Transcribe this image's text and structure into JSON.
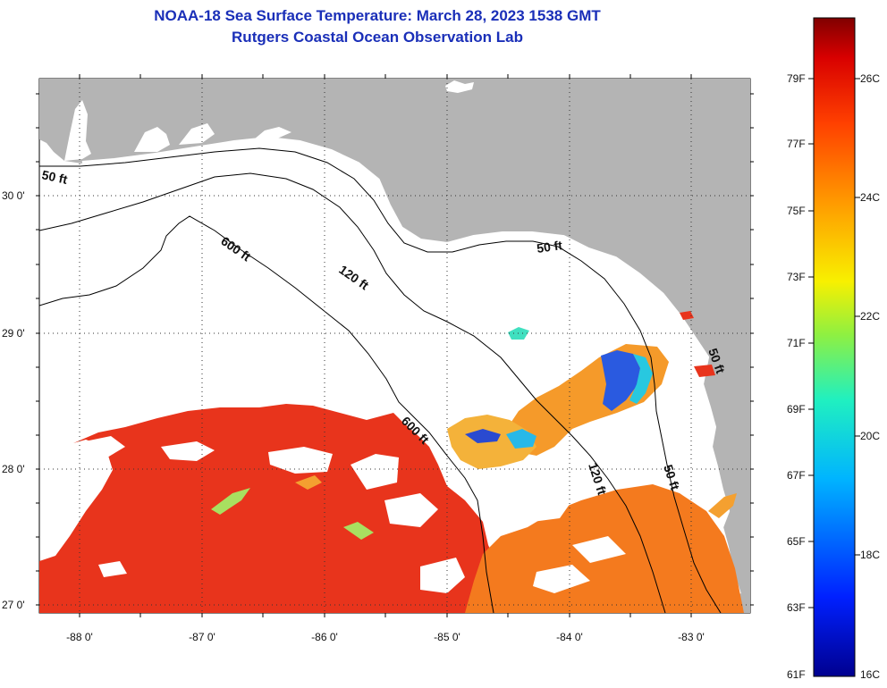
{
  "title": {
    "line1": "NOAA-18 Sea Surface Temperature:  March 28, 2023 1538 GMT",
    "line2": "Rutgers Coastal Ocean Observation Lab"
  },
  "map": {
    "lat_labels": [
      "30 0'",
      "29 0'",
      "28 0'",
      "27 0'"
    ],
    "lon_labels": [
      "-88 0'",
      "-87 0'",
      "-86 0'",
      "-85 0'",
      "-84 0'",
      "-83 0'"
    ],
    "contour_labels": {
      "c50_west": "50 ft",
      "c600_north": "600 ft",
      "c120_north": "120 ft",
      "c50_east": "50 ft",
      "c600_south": "600 ft",
      "c120_south": "120 ft",
      "c50_south": "50 ft",
      "c50_coast": "50 ft"
    },
    "colors": {
      "land": "#b4b4b4",
      "water_nodata": "#ffffff",
      "sst_warm": "#e8341c",
      "sst_orange": "#f47a1e",
      "sst_cool": "#2a5ae0"
    }
  },
  "colorbar": {
    "fahrenheit_labels": [
      "79F",
      "77F",
      "75F",
      "73F",
      "71F",
      "69F",
      "67F",
      "65F",
      "63F",
      "61F"
    ],
    "celsius_labels": [
      "26C",
      "24C",
      "22C",
      "20C",
      "18C",
      "16C"
    ],
    "range_f": [
      61,
      80
    ],
    "range_c": [
      16,
      27
    ]
  }
}
